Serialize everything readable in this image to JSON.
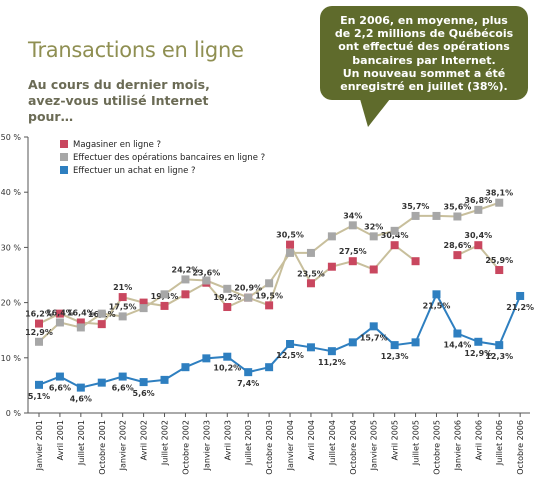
{
  "chart_data": {
    "type": "line",
    "title": "Transactions en ligne",
    "subtitle": "Au cours du dernier mois, avez-vous utilisé Internet pour…",
    "annotation": [
      "En 2006, en moyenne, plus",
      "de 2,2 millions de Québécois",
      "ont effectué des opérations",
      "bancaires par Internet.",
      "Un nouveau sommet a été",
      "enregistré en juillet (38%)."
    ],
    "categories": [
      "Janvier 2001",
      "Avril 2001",
      "Juillet 2001",
      "Octobre 2001",
      "Janvier 2002",
      "Avril 2002",
      "Juillet 2002",
      "Octobre 2002",
      "Janvier 2003",
      "Avril 2003",
      "Juillet 2003",
      "Octobre 2003",
      "Janvier 2004",
      "Avril 2004",
      "Juillet 2004",
      "Octobre 2004",
      "Janvier 2005",
      "Avril 2005",
      "Juillet 2005",
      "Octobre 2005",
      "Janvier 2006",
      "Avril 2006",
      "Juillet 2006",
      "Octobre 2006"
    ],
    "ylim": [
      0,
      50
    ],
    "yticks": [
      {
        "value": 0,
        "label": "0 %"
      },
      {
        "value": 10,
        "label": "10 %"
      },
      {
        "value": 20,
        "label": "20 %"
      },
      {
        "value": 30,
        "label": "30 %"
      },
      {
        "value": 40,
        "label": "40 %"
      },
      {
        "value": 50,
        "label": "50 %"
      }
    ],
    "series": [
      {
        "name": "Magasiner en ligne ?",
        "color": "#c9475f",
        "line_color": "#c8bf9c",
        "values": [
          16.2,
          18,
          16.4,
          16.1,
          21,
          20,
          19.4,
          21.5,
          23.6,
          19.2,
          20.9,
          19.5,
          30.5,
          23.5,
          26.5,
          27.5,
          26,
          30.4,
          27.5,
          null,
          28.6,
          30.4,
          25.9,
          null
        ],
        "value_labels": [
          "16,2%",
          null,
          "16,4%",
          "16,1%",
          "21%",
          null,
          "19,4%",
          null,
          "23,6%",
          "19,2%",
          "20,9%",
          "19,5%",
          "30,5%",
          "23,5%",
          null,
          "27,5%",
          null,
          "30,4%",
          null,
          null,
          "28,6%",
          "30,4%",
          "25,9%",
          null
        ]
      },
      {
        "name": "Effectuer des opérations bancaires en ligne ?",
        "color": "#a7a7a7",
        "line_color": "#c8bf9c",
        "values": [
          12.9,
          16.4,
          15.5,
          18,
          17.5,
          19,
          21.5,
          24.2,
          24,
          22.5,
          20.9,
          23.5,
          29,
          29,
          32,
          34,
          32,
          33,
          35.7,
          35.7,
          35.6,
          36.8,
          38.1,
          null
        ],
        "value_labels": [
          "12,9%",
          "16,4%",
          null,
          null,
          "17,5%",
          null,
          null,
          "24,2%",
          null,
          null,
          null,
          null,
          null,
          null,
          null,
          "34%",
          "32%",
          null,
          "35,7%",
          null,
          "35,6%",
          "36,8%",
          "38,1%",
          null
        ]
      },
      {
        "name": "Effectuer un achat en ligne ?",
        "color": "#2e7fc0",
        "line_color": "#2e7fc0",
        "values": [
          5.1,
          6.6,
          4.6,
          5.5,
          6.6,
          5.6,
          6,
          8.3,
          9.9,
          10.2,
          7.4,
          8.3,
          12.5,
          11.9,
          11.2,
          12.8,
          15.7,
          12.3,
          12.8,
          21.5,
          14.4,
          12.9,
          12.3,
          21.2
        ],
        "value_labels": [
          "5,1%",
          "6,6%",
          "4,6%",
          null,
          "6,6%",
          "5,6%",
          null,
          null,
          null,
          "10,2%",
          "7,4%",
          null,
          "12,5%",
          null,
          "11,2%",
          null,
          "15,7%",
          "12,3%",
          null,
          "21,5%",
          "14,4%",
          "12,9%",
          "12,3%",
          "21,2%"
        ]
      }
    ]
  }
}
